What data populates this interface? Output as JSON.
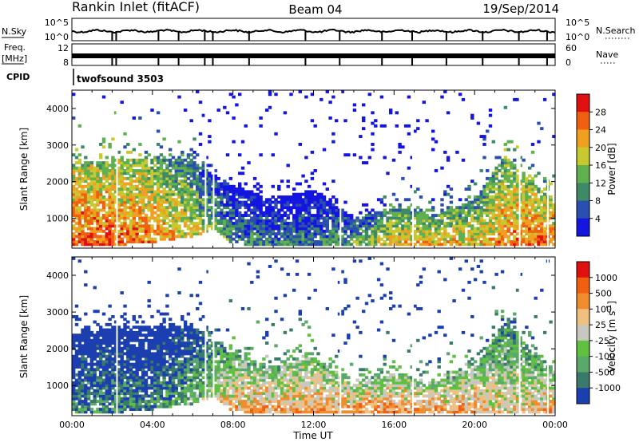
{
  "header": {
    "station": "Rankin Inlet (fitACF)",
    "beam": "Beam 04",
    "date": "19/Sep/2014"
  },
  "status_panels": {
    "nsky_label": "N.Sky",
    "nsky_ticks": [
      "10^5",
      "10^0"
    ],
    "nsearch_label": "N.Search",
    "nsearch_ticks": [
      "10^5",
      "10^0"
    ],
    "freq_label_1": "Freq.",
    "freq_label_2": "[MHz]",
    "freq_ticks": [
      "12",
      "8"
    ],
    "nave_label": "Nave",
    "nave_ticks": [
      "60",
      "0"
    ],
    "cpid_label": "CPID",
    "cpid_value": "twofsound 3503"
  },
  "chart_data": [
    {
      "type": "heatmap",
      "name": "power",
      "ylabel": "Slant Range [km]",
      "ylim": [
        180,
        4500
      ],
      "yticks": [
        "1000",
        "2000",
        "3000",
        "4000"
      ],
      "colorbar_label": "Power [dB]",
      "colorbar_ticks": [
        "4",
        "8",
        "12",
        "16",
        "20",
        "24",
        "28"
      ],
      "colorbar_colors": [
        "#1515e0",
        "#2a4fb0",
        "#3f8a66",
        "#60b050",
        "#c8c830",
        "#f0a020",
        "#f06010",
        "#e01010"
      ],
      "activity": [
        {
          "t": 0.0,
          "lo": 250,
          "hi": 2400,
          "level": 0.85
        },
        {
          "t": 2.0,
          "lo": 250,
          "hi": 2600,
          "level": 0.85
        },
        {
          "t": 4.0,
          "lo": 350,
          "hi": 2600,
          "level": 0.75
        },
        {
          "t": 6.0,
          "lo": 500,
          "hi": 2600,
          "level": 0.6
        },
        {
          "t": 7.0,
          "lo": 700,
          "hi": 2200,
          "level": 0.45
        },
        {
          "t": 8.0,
          "lo": 300,
          "hi": 1900,
          "level": 0.35
        },
        {
          "t": 10.0,
          "lo": 250,
          "hi": 1500,
          "level": 0.3
        },
        {
          "t": 12.0,
          "lo": 250,
          "hi": 1800,
          "level": 0.3
        },
        {
          "t": 14.0,
          "lo": 250,
          "hi": 1000,
          "level": 0.45
        },
        {
          "t": 16.0,
          "lo": 250,
          "hi": 1300,
          "level": 0.65
        },
        {
          "t": 18.0,
          "lo": 250,
          "hi": 1100,
          "level": 0.7
        },
        {
          "t": 20.0,
          "lo": 250,
          "hi": 1500,
          "level": 0.65
        },
        {
          "t": 21.5,
          "lo": 250,
          "hi": 2700,
          "level": 0.75
        },
        {
          "t": 24.0,
          "lo": 250,
          "hi": 1400,
          "level": 0.85
        }
      ]
    },
    {
      "type": "heatmap",
      "name": "velocity",
      "xlabel": "Time UT",
      "xticks": [
        "00:00",
        "04:00",
        "08:00",
        "12:00",
        "16:00",
        "20:00",
        "00:00"
      ],
      "ylabel": "Slant Range [km]",
      "ylim": [
        180,
        4500
      ],
      "yticks": [
        "1000",
        "2000",
        "3000",
        "4000"
      ],
      "colorbar_label": "Velocity [m s",
      "colorbar_label_sup": "-1",
      "colorbar_label_end": "]",
      "colorbar_ticks": [
        "1000",
        "500",
        "100",
        "25",
        "-25",
        "-100",
        "-500",
        "-1000"
      ],
      "colorbar_colors": [
        "#1c3fb0",
        "#3a7a6a",
        "#5aa86a",
        "#60c040",
        "#c8c8c0",
        "#f0c080",
        "#f08c30",
        "#f06010",
        "#e01010"
      ],
      "activity": [
        {
          "t": 0.0,
          "lo": 250,
          "hi": 2400,
          "level": 0.2
        },
        {
          "t": 2.0,
          "lo": 250,
          "hi": 2600,
          "level": 0.25
        },
        {
          "t": 4.0,
          "lo": 350,
          "hi": 2600,
          "level": 0.2
        },
        {
          "t": 6.0,
          "lo": 500,
          "hi": 2600,
          "level": 0.35
        },
        {
          "t": 7.0,
          "lo": 700,
          "hi": 2200,
          "level": 0.5
        },
        {
          "t": 8.0,
          "lo": 300,
          "hi": 1900,
          "level": 0.65
        },
        {
          "t": 10.0,
          "lo": 250,
          "hi": 1500,
          "level": 0.7
        },
        {
          "t": 12.0,
          "lo": 250,
          "hi": 1800,
          "level": 0.7
        },
        {
          "t": 14.0,
          "lo": 250,
          "hi": 1000,
          "level": 0.75
        },
        {
          "t": 16.0,
          "lo": 250,
          "hi": 1300,
          "level": 0.75
        },
        {
          "t": 18.0,
          "lo": 250,
          "hi": 1100,
          "level": 0.72
        },
        {
          "t": 20.0,
          "lo": 250,
          "hi": 1500,
          "level": 0.7
        },
        {
          "t": 21.5,
          "lo": 250,
          "hi": 2700,
          "level": 0.55
        },
        {
          "t": 24.0,
          "lo": 250,
          "hi": 1400,
          "level": 0.7
        }
      ]
    }
  ]
}
